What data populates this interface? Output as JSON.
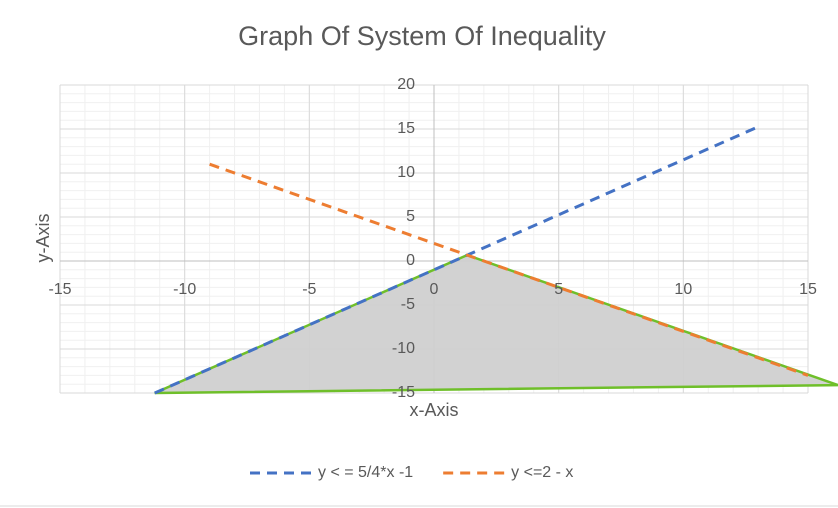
{
  "chart_data": {
    "type": "line",
    "title": "Graph Of System Of Inequality",
    "x_label": "x-Axis",
    "y_label": "y-Axis",
    "xlim": [
      -15,
      15
    ],
    "ylim": [
      -15,
      20
    ],
    "xticks": [
      -15,
      -10,
      -5,
      0,
      5,
      10,
      15
    ],
    "yticks": [
      -15,
      -10,
      -5,
      0,
      5,
      10,
      15,
      20
    ],
    "grid": true,
    "minor_grid": true,
    "legend": "bottom",
    "series": [
      {
        "name": "y < = 5/4*x -1",
        "color": "#4472c4",
        "dash": true,
        "x": [
          -11.2,
          13
        ],
        "y": [
          -15,
          15.25
        ]
      },
      {
        "name": "y <=2 - x",
        "color": "#ed7d31",
        "dash": true,
        "x": [
          -9,
          15
        ],
        "y": [
          11,
          -13
        ]
      }
    ],
    "shaded_region": {
      "x": [
        -11.2,
        1.33,
        16.2
      ],
      "y": [
        -15,
        0.67,
        -14.1
      ],
      "fill": "#d0d0d0",
      "stroke": "#6fbf2a"
    }
  }
}
